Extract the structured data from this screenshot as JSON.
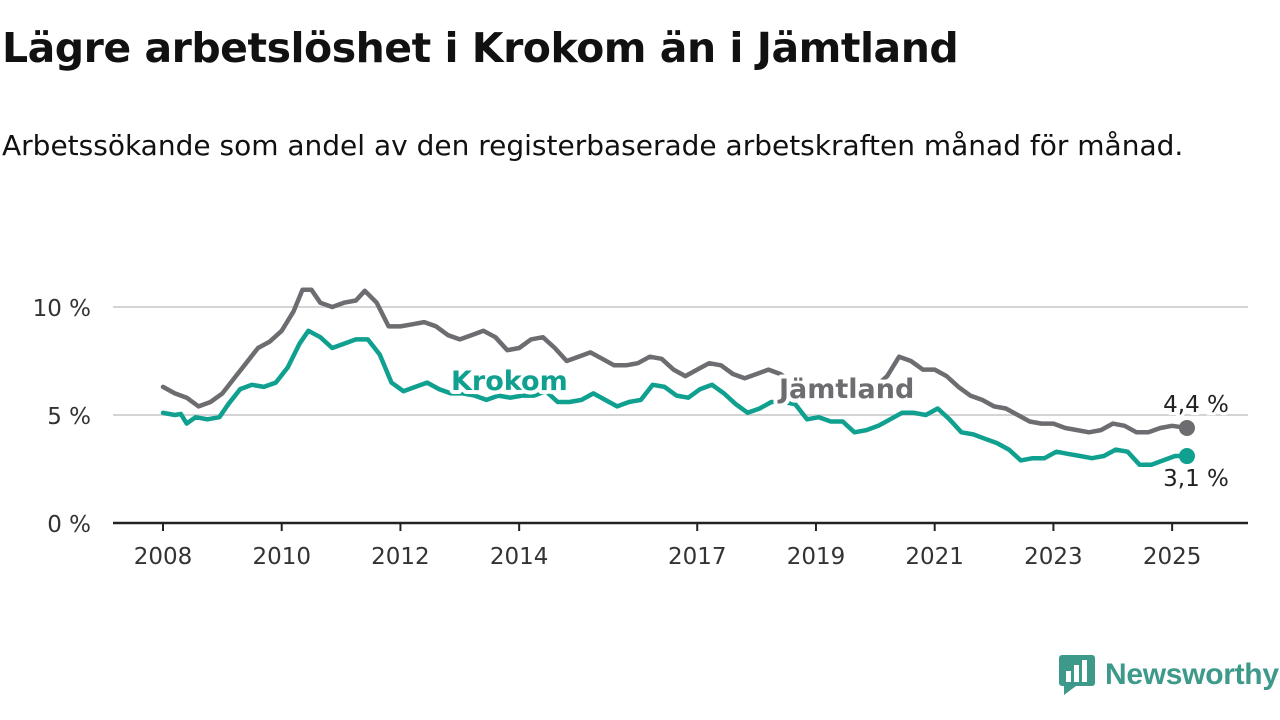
{
  "header": {
    "title": "Lägre arbetslöshet i Krokom än i Jämtland",
    "subtitle": "Arbetssökande som andel av den registerbaserade arbetskraften månad för månad."
  },
  "brand": {
    "name": "Newsworthy",
    "color": "#3d9a8b"
  },
  "chart_data": {
    "type": "line",
    "x_ticks": [
      "2008",
      "2010",
      "2012",
      "2014",
      "2017",
      "2019",
      "2021",
      "2023",
      "2025"
    ],
    "y_ticks": [
      0,
      5,
      10
    ],
    "y_tick_labels": [
      "0 %",
      "5 %",
      "10 %"
    ],
    "ylim": [
      0,
      11
    ],
    "xlim": [
      2007.5,
      2026.3
    ],
    "grid": true,
    "series": [
      {
        "name": "Jämtland",
        "color": "#6d6d71",
        "end_label": "4,4 %",
        "points": [
          [
            2008.0,
            6.3
          ],
          [
            2008.2,
            6.0
          ],
          [
            2008.4,
            5.8
          ],
          [
            2008.6,
            5.4
          ],
          [
            2008.8,
            5.6
          ],
          [
            2009.0,
            6.0
          ],
          [
            2009.2,
            6.7
          ],
          [
            2009.4,
            7.4
          ],
          [
            2009.6,
            8.1
          ],
          [
            2009.8,
            8.4
          ],
          [
            2010.0,
            8.9
          ],
          [
            2010.2,
            9.8
          ],
          [
            2010.35,
            10.8
          ],
          [
            2010.5,
            10.8
          ],
          [
            2010.65,
            10.2
          ],
          [
            2010.85,
            10.0
          ],
          [
            2011.05,
            10.2
          ],
          [
            2011.25,
            10.3
          ],
          [
            2011.4,
            10.75
          ],
          [
            2011.6,
            10.2
          ],
          [
            2011.8,
            9.1
          ],
          [
            2012.0,
            9.1
          ],
          [
            2012.2,
            9.2
          ],
          [
            2012.4,
            9.3
          ],
          [
            2012.6,
            9.1
          ],
          [
            2012.8,
            8.7
          ],
          [
            2013.0,
            8.5
          ],
          [
            2013.2,
            8.7
          ],
          [
            2013.4,
            8.9
          ],
          [
            2013.6,
            8.6
          ],
          [
            2013.8,
            8.0
          ],
          [
            2014.0,
            8.1
          ],
          [
            2014.2,
            8.5
          ],
          [
            2014.4,
            8.6
          ],
          [
            2014.6,
            8.1
          ],
          [
            2014.8,
            7.5
          ],
          [
            2015.0,
            7.7
          ],
          [
            2015.2,
            7.9
          ],
          [
            2015.4,
            7.6
          ],
          [
            2015.6,
            7.3
          ],
          [
            2015.8,
            7.3
          ],
          [
            2016.0,
            7.4
          ],
          [
            2016.2,
            7.7
          ],
          [
            2016.4,
            7.6
          ],
          [
            2016.6,
            7.1
          ],
          [
            2016.8,
            6.8
          ],
          [
            2017.0,
            7.1
          ],
          [
            2017.2,
            7.4
          ],
          [
            2017.4,
            7.3
          ],
          [
            2017.6,
            6.9
          ],
          [
            2017.8,
            6.7
          ],
          [
            2018.0,
            6.9
          ],
          [
            2018.2,
            7.1
          ],
          [
            2018.4,
            6.9
          ],
          [
            2018.6,
            6.5
          ],
          [
            2018.8,
            6.3
          ],
          [
            2019.0,
            6.4
          ],
          [
            2019.2,
            6.4
          ],
          [
            2019.4,
            6.2
          ],
          [
            2019.6,
            5.8
          ],
          [
            2019.8,
            5.9
          ],
          [
            2020.0,
            6.3
          ],
          [
            2020.2,
            6.8
          ],
          [
            2020.4,
            7.7
          ],
          [
            2020.6,
            7.5
          ],
          [
            2020.8,
            7.1
          ],
          [
            2021.0,
            7.1
          ],
          [
            2021.2,
            6.8
          ],
          [
            2021.4,
            6.3
          ],
          [
            2021.6,
            5.9
          ],
          [
            2021.8,
            5.7
          ],
          [
            2022.0,
            5.4
          ],
          [
            2022.2,
            5.3
          ],
          [
            2022.4,
            5.0
          ],
          [
            2022.6,
            4.7
          ],
          [
            2022.8,
            4.6
          ],
          [
            2023.0,
            4.6
          ],
          [
            2023.2,
            4.4
          ],
          [
            2023.4,
            4.3
          ],
          [
            2023.6,
            4.2
          ],
          [
            2023.8,
            4.3
          ],
          [
            2024.0,
            4.6
          ],
          [
            2024.2,
            4.5
          ],
          [
            2024.4,
            4.2
          ],
          [
            2024.6,
            4.2
          ],
          [
            2024.8,
            4.4
          ],
          [
            2025.0,
            4.5
          ],
          [
            2025.25,
            4.4
          ]
        ]
      },
      {
        "name": "Krokom",
        "color": "#0fa08f",
        "end_label": "3,1 %",
        "points": [
          [
            2008.0,
            5.1
          ],
          [
            2008.2,
            5.0
          ],
          [
            2008.3,
            5.05
          ],
          [
            2008.4,
            4.6
          ],
          [
            2008.55,
            4.9
          ],
          [
            2008.75,
            4.8
          ],
          [
            2008.95,
            4.9
          ],
          [
            2009.1,
            5.5
          ],
          [
            2009.3,
            6.2
          ],
          [
            2009.5,
            6.4
          ],
          [
            2009.7,
            6.3
          ],
          [
            2009.9,
            6.5
          ],
          [
            2010.1,
            7.2
          ],
          [
            2010.3,
            8.3
          ],
          [
            2010.45,
            8.9
          ],
          [
            2010.65,
            8.6
          ],
          [
            2010.85,
            8.1
          ],
          [
            2011.05,
            8.3
          ],
          [
            2011.25,
            8.5
          ],
          [
            2011.45,
            8.5
          ],
          [
            2011.65,
            7.8
          ],
          [
            2011.85,
            6.5
          ],
          [
            2012.05,
            6.1
          ],
          [
            2012.25,
            6.3
          ],
          [
            2012.45,
            6.5
          ],
          [
            2012.65,
            6.2
          ],
          [
            2012.85,
            6.0
          ],
          [
            2013.05,
            6.0
          ],
          [
            2013.25,
            5.9
          ],
          [
            2013.45,
            5.7
          ],
          [
            2013.65,
            5.9
          ],
          [
            2013.85,
            5.8
          ],
          [
            2014.05,
            5.9
          ],
          [
            2014.25,
            5.9
          ],
          [
            2014.45,
            6.1
          ],
          [
            2014.65,
            5.6
          ],
          [
            2014.85,
            5.6
          ],
          [
            2015.05,
            5.7
          ],
          [
            2015.25,
            6.0
          ],
          [
            2015.45,
            5.7
          ],
          [
            2015.65,
            5.4
          ],
          [
            2015.85,
            5.6
          ],
          [
            2016.05,
            5.7
          ],
          [
            2016.25,
            6.4
          ],
          [
            2016.45,
            6.3
          ],
          [
            2016.65,
            5.9
          ],
          [
            2016.85,
            5.8
          ],
          [
            2017.05,
            6.2
          ],
          [
            2017.25,
            6.4
          ],
          [
            2017.45,
            6.0
          ],
          [
            2017.65,
            5.5
          ],
          [
            2017.85,
            5.1
          ],
          [
            2018.05,
            5.3
          ],
          [
            2018.25,
            5.6
          ],
          [
            2018.45,
            5.6
          ],
          [
            2018.65,
            5.5
          ],
          [
            2018.85,
            4.8
          ],
          [
            2019.05,
            4.9
          ],
          [
            2019.25,
            4.7
          ],
          [
            2019.45,
            4.7
          ],
          [
            2019.65,
            4.2
          ],
          [
            2019.85,
            4.3
          ],
          [
            2020.05,
            4.5
          ],
          [
            2020.25,
            4.8
          ],
          [
            2020.45,
            5.1
          ],
          [
            2020.65,
            5.1
          ],
          [
            2020.85,
            5.0
          ],
          [
            2021.05,
            5.3
          ],
          [
            2021.25,
            4.8
          ],
          [
            2021.45,
            4.2
          ],
          [
            2021.65,
            4.1
          ],
          [
            2021.85,
            3.9
          ],
          [
            2022.05,
            3.7
          ],
          [
            2022.25,
            3.4
          ],
          [
            2022.45,
            2.9
          ],
          [
            2022.65,
            3.0
          ],
          [
            2022.85,
            3.0
          ],
          [
            2023.05,
            3.3
          ],
          [
            2023.25,
            3.2
          ],
          [
            2023.45,
            3.1
          ],
          [
            2023.65,
            3.0
          ],
          [
            2023.85,
            3.1
          ],
          [
            2024.05,
            3.4
          ],
          [
            2024.25,
            3.3
          ],
          [
            2024.45,
            2.7
          ],
          [
            2024.65,
            2.7
          ],
          [
            2024.85,
            2.9
          ],
          [
            2025.05,
            3.1
          ],
          [
            2025.25,
            3.1
          ]
        ]
      }
    ]
  }
}
